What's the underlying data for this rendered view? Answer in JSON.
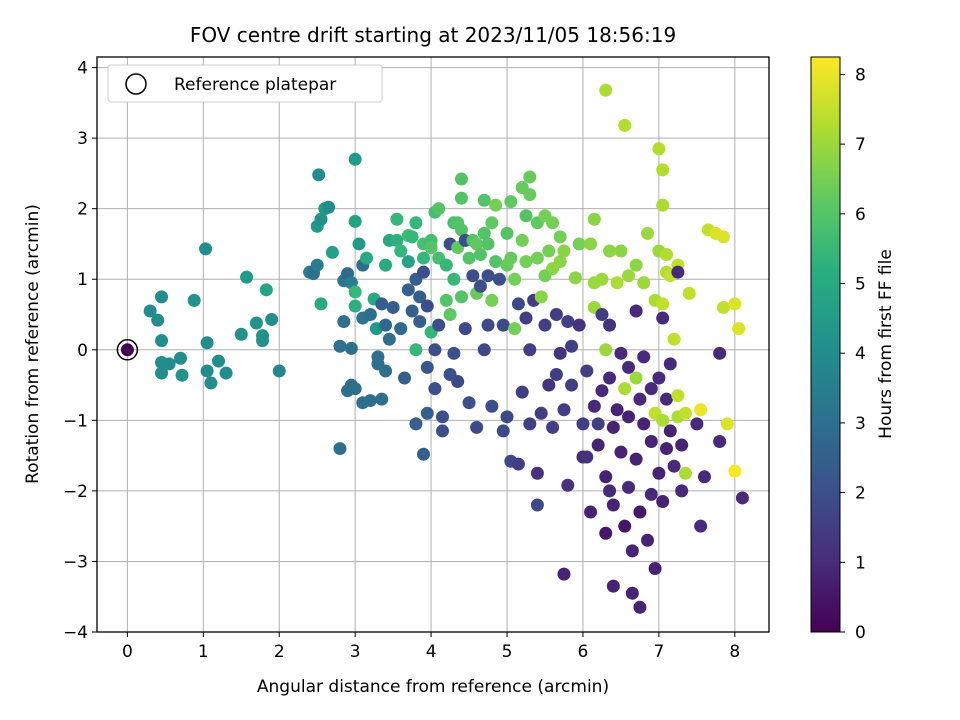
{
  "chart_data": {
    "type": "scatter",
    "title": "FOV centre drift starting at 2023/11/05 18:56:19",
    "xlabel": "Angular distance from reference (arcmin)",
    "ylabel": "Rotation from reference (arcmin)",
    "xlim": [
      -0.4,
      8.45
    ],
    "ylim": [
      -4.0,
      4.15
    ],
    "x_ticks": [
      0,
      1,
      2,
      3,
      4,
      5,
      6,
      7,
      8
    ],
    "y_ticks": [
      -4,
      -3,
      -2,
      -1,
      0,
      1,
      2,
      3,
      4
    ],
    "grid": true,
    "legend": {
      "location": "top-left",
      "entries": [
        "Reference platepar"
      ]
    },
    "colorbar": {
      "label": "Hours from first FF file",
      "colormap": "viridis",
      "range": [
        0,
        8.25
      ],
      "ticks": [
        0,
        1,
        2,
        3,
        4,
        5,
        6,
        7,
        8
      ]
    },
    "reference_point": {
      "x": 0,
      "y": 0,
      "hours": 0
    },
    "points": [
      [
        0.3,
        0.55,
        4.0
      ],
      [
        0.45,
        0.75,
        4.0
      ],
      [
        0.4,
        0.42,
        4.0
      ],
      [
        0.45,
        0.13,
        4.0
      ],
      [
        0.45,
        -0.18,
        4.0
      ],
      [
        0.45,
        -0.33,
        4.0
      ],
      [
        0.55,
        -0.2,
        4.0
      ],
      [
        0.7,
        -0.12,
        4.0
      ],
      [
        0.72,
        -0.36,
        4.2
      ],
      [
        0.88,
        0.7,
        4.2
      ],
      [
        1.03,
        1.43,
        4.0
      ],
      [
        1.05,
        0.1,
        4.0
      ],
      [
        1.05,
        -0.3,
        4.0
      ],
      [
        1.1,
        -0.47,
        4.0
      ],
      [
        1.2,
        -0.16,
        4.0
      ],
      [
        1.3,
        -0.33,
        4.0
      ],
      [
        1.5,
        0.22,
        4.2
      ],
      [
        1.57,
        1.03,
        4.5
      ],
      [
        1.7,
        0.38,
        4.2
      ],
      [
        1.78,
        0.2,
        4.2
      ],
      [
        1.78,
        0.13,
        4.2
      ],
      [
        1.83,
        0.85,
        4.8
      ],
      [
        1.9,
        0.43,
        4.0
      ],
      [
        2.0,
        -0.3,
        3.8
      ],
      [
        2.4,
        1.1,
        3.5
      ],
      [
        2.45,
        1.08,
        3.2
      ],
      [
        2.45,
        1.1,
        3.0
      ],
      [
        2.5,
        1.2,
        3.5
      ],
      [
        2.5,
        1.75,
        4.5
      ],
      [
        2.52,
        2.48,
        4.0
      ],
      [
        2.55,
        1.85,
        4.2
      ],
      [
        2.55,
        0.65,
        5.0
      ],
      [
        2.6,
        2.0,
        4.5
      ],
      [
        2.65,
        2.02,
        4.0
      ],
      [
        2.7,
        1.38,
        4.7
      ],
      [
        2.8,
        0.05,
        3.0
      ],
      [
        2.8,
        -1.4,
        3.0
      ],
      [
        2.85,
        0.98,
        3.2
      ],
      [
        2.85,
        0.4,
        3.0
      ],
      [
        2.9,
        1.08,
        2.8
      ],
      [
        2.9,
        -0.58,
        3.0
      ],
      [
        2.95,
        -0.5,
        3.0
      ],
      [
        2.95,
        0.02,
        3.0
      ],
      [
        2.95,
        0.95,
        3.5
      ],
      [
        3.0,
        2.7,
        4.5
      ],
      [
        3.0,
        1.82,
        4.8
      ],
      [
        3.0,
        0.82,
        5.5
      ],
      [
        3.0,
        0.62,
        5.2
      ],
      [
        3.0,
        -0.55,
        3.0
      ],
      [
        3.05,
        1.5,
        4.5
      ],
      [
        3.1,
        1.2,
        3.0
      ],
      [
        3.1,
        0.45,
        3.2
      ],
      [
        3.1,
        -0.75,
        3.0
      ],
      [
        3.15,
        1.3,
        5.0
      ],
      [
        3.2,
        0.5,
        3.0
      ],
      [
        3.2,
        -0.72,
        3.0
      ],
      [
        3.25,
        0.72,
        5.0
      ],
      [
        3.28,
        0.3,
        4.5
      ],
      [
        3.3,
        -0.1,
        3.0
      ],
      [
        3.3,
        -0.2,
        3.0
      ],
      [
        3.35,
        0.65,
        2.5
      ],
      [
        3.35,
        -0.7,
        3.0
      ],
      [
        3.4,
        1.2,
        5.0
      ],
      [
        3.4,
        0.35,
        2.8
      ],
      [
        3.4,
        -0.3,
        3.0
      ],
      [
        3.45,
        0.15,
        3.0
      ],
      [
        3.45,
        1.55,
        5.0
      ],
      [
        3.5,
        0.6,
        2.5
      ],
      [
        3.55,
        1.55,
        5.2
      ],
      [
        3.55,
        1.85,
        5.5
      ],
      [
        3.6,
        1.4,
        5.5
      ],
      [
        3.6,
        0.3,
        2.8
      ],
      [
        3.65,
        -0.4,
        2.5
      ],
      [
        3.7,
        1.62,
        5.7
      ],
      [
        3.7,
        1.25,
        4.8
      ],
      [
        3.7,
        0.85,
        2.5
      ],
      [
        3.75,
        0.55,
        2.5
      ],
      [
        3.75,
        1.6,
        5.5
      ],
      [
        3.8,
        -1.05,
        2.5
      ],
      [
        3.8,
        1.0,
        2.5
      ],
      [
        3.8,
        0.0,
        5.5
      ],
      [
        3.8,
        1.8,
        5.5
      ],
      [
        3.85,
        0.75,
        2.5
      ],
      [
        3.85,
        0.4,
        2.5
      ],
      [
        3.9,
        -1.48,
        2.5
      ],
      [
        3.9,
        1.3,
        5.5
      ],
      [
        3.9,
        1.1,
        2.0
      ],
      [
        3.9,
        1.5,
        5.8
      ],
      [
        3.95,
        0.62,
        2.0
      ],
      [
        3.95,
        -0.25,
        2.2
      ],
      [
        3.95,
        -0.9,
        2.5
      ],
      [
        4.0,
        1.55,
        5.8
      ],
      [
        4.0,
        1.45,
        6.0
      ],
      [
        4.0,
        0.25,
        5.5
      ],
      [
        4.05,
        1.95,
        5.8
      ],
      [
        4.05,
        0.0,
        2.0
      ],
      [
        4.05,
        -0.55,
        2.0
      ],
      [
        4.1,
        1.3,
        5.8
      ],
      [
        4.1,
        2.0,
        6.0
      ],
      [
        4.1,
        0.35,
        2.0
      ],
      [
        4.15,
        -0.95,
        2.0
      ],
      [
        4.15,
        -1.15,
        2.0
      ],
      [
        4.2,
        1.2,
        5.5
      ],
      [
        4.2,
        0.7,
        6.0
      ],
      [
        4.25,
        1.5,
        2.0
      ],
      [
        4.25,
        0.5,
        6.2
      ],
      [
        4.25,
        -0.35,
        2.0
      ],
      [
        4.3,
        1.8,
        5.8
      ],
      [
        4.3,
        1.0,
        5.5
      ],
      [
        4.3,
        -0.05,
        2.0
      ],
      [
        4.35,
        1.8,
        6.0
      ],
      [
        4.35,
        1.45,
        6.2
      ],
      [
        4.35,
        -0.45,
        1.8
      ],
      [
        4.4,
        2.42,
        6.0
      ],
      [
        4.4,
        2.15,
        6.0
      ],
      [
        4.4,
        1.7,
        6.0
      ],
      [
        4.4,
        0.75,
        6.0
      ],
      [
        4.45,
        1.55,
        2.0
      ],
      [
        4.45,
        0.3,
        1.8
      ],
      [
        4.5,
        1.3,
        6.0
      ],
      [
        4.5,
        -0.75,
        2.0
      ],
      [
        4.55,
        1.55,
        6.0
      ],
      [
        4.55,
        1.05,
        2.0
      ],
      [
        4.6,
        1.5,
        6.2
      ],
      [
        4.6,
        0.8,
        6.3
      ],
      [
        4.6,
        -1.1,
        1.8
      ],
      [
        4.65,
        1.35,
        6.0
      ],
      [
        4.65,
        0.9,
        2.0
      ],
      [
        4.7,
        2.12,
        6.0
      ],
      [
        4.7,
        1.65,
        6.0
      ],
      [
        4.7,
        0.0,
        1.8
      ],
      [
        4.75,
        1.5,
        6.0
      ],
      [
        4.75,
        1.05,
        2.0
      ],
      [
        4.75,
        0.35,
        1.8
      ],
      [
        4.8,
        1.8,
        6.2
      ],
      [
        4.8,
        0.7,
        6.5
      ],
      [
        4.8,
        -0.8,
        2.0
      ],
      [
        4.85,
        2.05,
        6.5
      ],
      [
        4.85,
        1.25,
        6.0
      ],
      [
        4.9,
        1.0,
        2.0
      ],
      [
        4.95,
        0.35,
        1.8
      ],
      [
        4.95,
        -1.15,
        1.8
      ],
      [
        5.0,
        1.65,
        6.0
      ],
      [
        5.0,
        1.2,
        6.3
      ],
      [
        5.0,
        -0.95,
        1.8
      ],
      [
        5.05,
        2.1,
        6.2
      ],
      [
        5.05,
        1.3,
        6.3
      ],
      [
        5.05,
        -1.58,
        1.8
      ],
      [
        5.1,
        1.0,
        6.5
      ],
      [
        5.1,
        0.3,
        6.5
      ],
      [
        5.15,
        0.65,
        1.8
      ],
      [
        5.15,
        -1.62,
        1.5
      ],
      [
        5.2,
        2.3,
        6.3
      ],
      [
        5.2,
        1.55,
        6.5
      ],
      [
        5.2,
        -0.6,
        1.5
      ],
      [
        5.25,
        1.9,
        6.0
      ],
      [
        5.25,
        1.25,
        6.5
      ],
      [
        5.25,
        0.45,
        1.5
      ],
      [
        5.3,
        2.45,
        6.3
      ],
      [
        5.3,
        2.2,
        6.3
      ],
      [
        5.3,
        0.0,
        1.5
      ],
      [
        5.3,
        -1.05,
        1.5
      ],
      [
        5.35,
        0.7,
        1.5
      ],
      [
        5.4,
        1.8,
        6.2
      ],
      [
        5.4,
        1.3,
        6.5
      ],
      [
        5.4,
        -1.75,
        1.2
      ],
      [
        5.4,
        -2.2,
        1.8
      ],
      [
        5.45,
        0.75,
        6.8
      ],
      [
        5.45,
        -0.9,
        1.5
      ],
      [
        5.5,
        1.9,
        6.5
      ],
      [
        5.5,
        1.05,
        6.5
      ],
      [
        5.5,
        0.35,
        1.5
      ],
      [
        5.55,
        1.4,
        6.5
      ],
      [
        5.55,
        -0.5,
        1.2
      ],
      [
        5.6,
        1.8,
        6.5
      ],
      [
        5.6,
        1.15,
        6.8
      ],
      [
        5.6,
        -1.1,
        1.5
      ],
      [
        5.65,
        0.5,
        1.5
      ],
      [
        5.65,
        -0.35,
        1.5
      ],
      [
        5.7,
        1.6,
        6.5
      ],
      [
        5.7,
        1.25,
        6.8
      ],
      [
        5.7,
        -0.05,
        1.2
      ],
      [
        5.75,
        -0.85,
        1.5
      ],
      [
        5.75,
        -3.18,
        0.8
      ],
      [
        5.75,
        1.4,
        6.8
      ],
      [
        5.8,
        0.4,
        1.5
      ],
      [
        5.8,
        -1.92,
        1.2
      ],
      [
        5.85,
        0.05,
        1.5
      ],
      [
        5.85,
        -0.5,
        1.5
      ],
      [
        5.9,
        1.02,
        6.8
      ],
      [
        5.95,
        1.5,
        6.5
      ],
      [
        5.95,
        0.35,
        1.2
      ],
      [
        6.0,
        -1.05,
        1.5
      ],
      [
        6.0,
        -1.52,
        1.0
      ],
      [
        6.05,
        -0.3,
        1.5
      ],
      [
        6.05,
        -1.52,
        1.2
      ],
      [
        6.1,
        1.5,
        6.8
      ],
      [
        6.1,
        -2.3,
        0.8
      ],
      [
        6.15,
        1.85,
        6.8
      ],
      [
        6.15,
        0.95,
        7.0
      ],
      [
        6.15,
        0.6,
        7.0
      ],
      [
        6.15,
        -0.8,
        1.0
      ],
      [
        6.2,
        -1.05,
        1.5
      ],
      [
        6.2,
        -1.35,
        0.8
      ],
      [
        6.25,
        1.0,
        7.0
      ],
      [
        6.25,
        0.5,
        1.5
      ],
      [
        6.25,
        -0.58,
        1.0
      ],
      [
        6.3,
        3.68,
        7.2
      ],
      [
        6.3,
        0.0,
        7.0
      ],
      [
        6.3,
        -1.8,
        0.8
      ],
      [
        6.3,
        -2.6,
        0.5
      ],
      [
        6.35,
        1.4,
        6.8
      ],
      [
        6.35,
        0.35,
        1.2
      ],
      [
        6.35,
        -0.4,
        1.0
      ],
      [
        6.35,
        -2.0,
        1.0
      ],
      [
        6.4,
        -1.1,
        0.8
      ],
      [
        6.4,
        -2.2,
        0.8
      ],
      [
        6.4,
        -3.35,
        0.8
      ],
      [
        6.45,
        0.95,
        7.2
      ],
      [
        6.45,
        -0.85,
        0.8
      ],
      [
        6.5,
        1.4,
        6.8
      ],
      [
        6.5,
        -0.05,
        1.0
      ],
      [
        6.5,
        -1.45,
        0.8
      ],
      [
        6.55,
        3.18,
        7.3
      ],
      [
        6.55,
        -0.55,
        7.2
      ],
      [
        6.55,
        -2.5,
        0.5
      ],
      [
        6.6,
        1.05,
        7.0
      ],
      [
        6.6,
        -0.25,
        1.0
      ],
      [
        6.6,
        -0.95,
        0.8
      ],
      [
        6.6,
        -1.95,
        1.0
      ],
      [
        6.65,
        -2.85,
        0.8
      ],
      [
        6.65,
        -3.45,
        0.8
      ],
      [
        6.7,
        1.2,
        6.8
      ],
      [
        6.7,
        -0.4,
        7.0
      ],
      [
        6.7,
        0.55,
        1.0
      ],
      [
        6.7,
        -1.55,
        0.8
      ],
      [
        6.75,
        -0.7,
        1.0
      ],
      [
        6.75,
        -2.3,
        0.5
      ],
      [
        6.75,
        -3.65,
        0.8
      ],
      [
        6.8,
        0.95,
        7.0
      ],
      [
        6.8,
        -0.1,
        1.0
      ],
      [
        6.8,
        -1.05,
        0.8
      ],
      [
        6.85,
        1.65,
        7.0
      ],
      [
        6.85,
        -2.7,
        0.8
      ],
      [
        6.9,
        -0.55,
        1.0
      ],
      [
        6.9,
        -1.3,
        0.8
      ],
      [
        6.9,
        -2.05,
        1.0
      ],
      [
        6.95,
        0.7,
        7.2
      ],
      [
        6.95,
        -0.9,
        7.5
      ],
      [
        6.95,
        -3.1,
        0.8
      ],
      [
        7.0,
        2.85,
        7.3
      ],
      [
        7.0,
        1.4,
        7.0
      ],
      [
        7.0,
        -0.4,
        1.0
      ],
      [
        7.0,
        -1.75,
        0.8
      ],
      [
        7.05,
        2.55,
        7.3
      ],
      [
        7.05,
        2.05,
        7.2
      ],
      [
        7.05,
        0.65,
        7.5
      ],
      [
        7.05,
        0.45,
        1.0
      ],
      [
        7.05,
        -1.0,
        7.2
      ],
      [
        7.05,
        -2.15,
        0.8
      ],
      [
        7.1,
        1.35,
        7.3
      ],
      [
        7.1,
        1.1,
        7.3
      ],
      [
        7.1,
        -0.7,
        1.0
      ],
      [
        7.1,
        -1.4,
        0.8
      ],
      [
        7.15,
        1.05,
        7.5
      ],
      [
        7.15,
        -0.2,
        1.0
      ],
      [
        7.15,
        -1.15,
        0.8
      ],
      [
        7.2,
        0.15,
        7.5
      ],
      [
        7.2,
        -1.65,
        1.0
      ],
      [
        7.25,
        1.2,
        7.5
      ],
      [
        7.25,
        1.1,
        1.0
      ],
      [
        7.25,
        -0.65,
        7.5
      ],
      [
        7.25,
        -0.95,
        7.2
      ],
      [
        7.3,
        -1.35,
        0.8
      ],
      [
        7.3,
        -2.0,
        1.0
      ],
      [
        7.35,
        -0.9,
        7.5
      ],
      [
        7.35,
        -1.75,
        7.2
      ],
      [
        7.4,
        0.8,
        7.5
      ],
      [
        7.5,
        -1.05,
        1.0
      ],
      [
        7.55,
        -0.85,
        8.0
      ],
      [
        7.55,
        -2.5,
        1.0
      ],
      [
        7.6,
        -1.8,
        1.0
      ],
      [
        7.65,
        1.7,
        7.5
      ],
      [
        7.75,
        1.65,
        7.8
      ],
      [
        7.8,
        -0.05,
        1.0
      ],
      [
        7.8,
        -1.3,
        1.0
      ],
      [
        7.85,
        0.6,
        7.5
      ],
      [
        7.85,
        1.6,
        7.8
      ],
      [
        7.9,
        -1.05,
        7.8
      ],
      [
        8.0,
        -1.72,
        8.2
      ],
      [
        8.0,
        0.65,
        7.8
      ],
      [
        8.05,
        0.3,
        7.8
      ],
      [
        8.1,
        -2.1,
        1.0
      ]
    ]
  }
}
